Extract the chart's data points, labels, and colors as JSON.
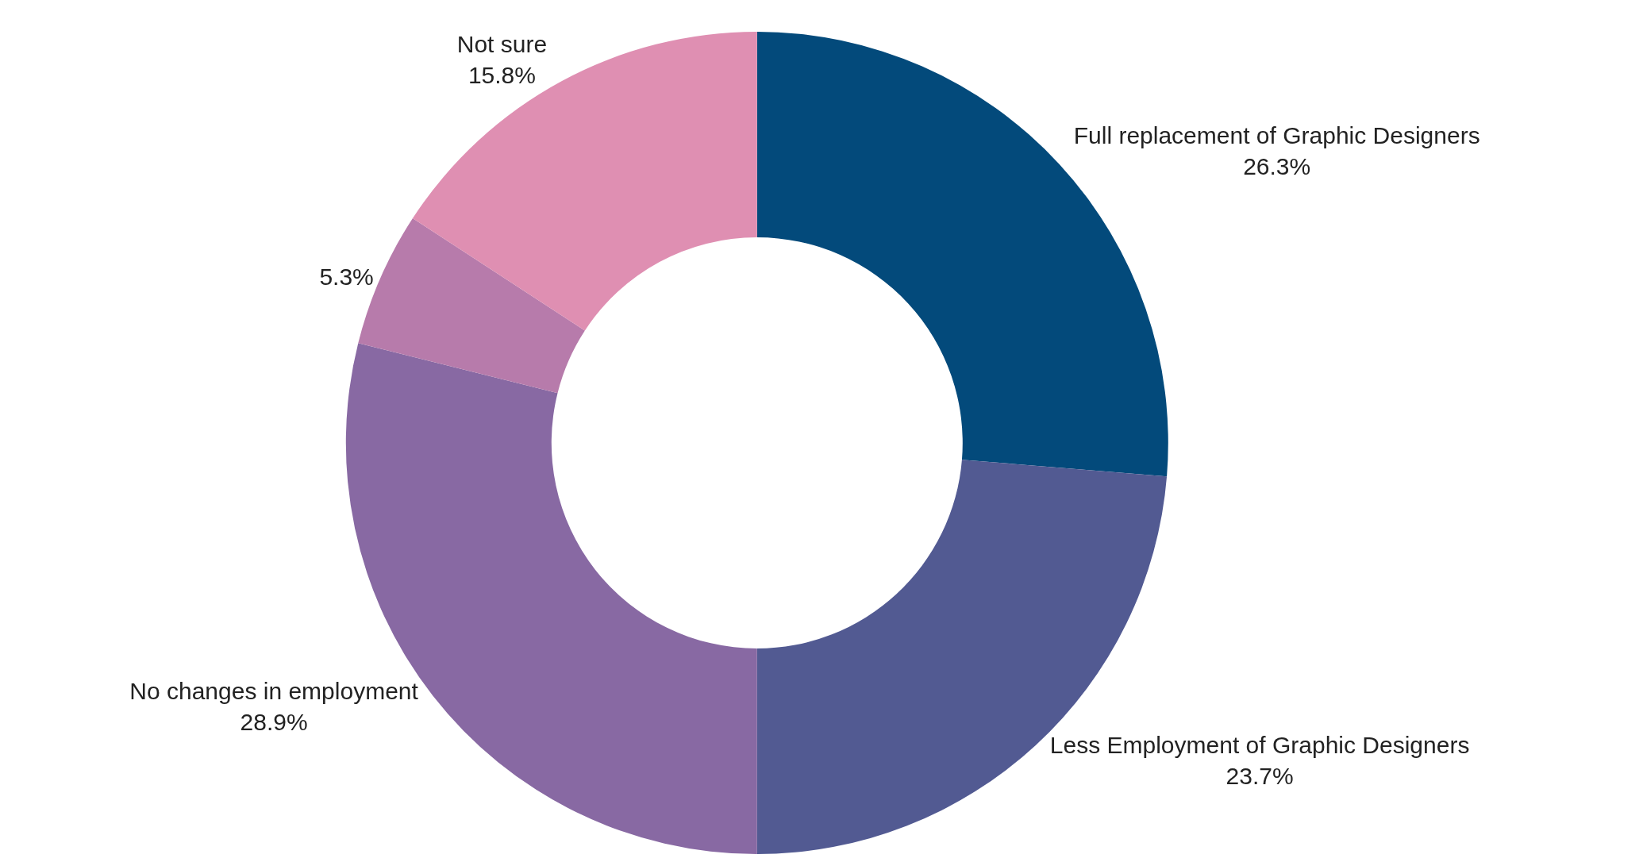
{
  "chart_data": {
    "type": "donut",
    "categories": [
      "Full replacement of Graphic Designers",
      "Less Employment of Graphic Designers",
      "No changes in employment",
      null,
      "Not sure"
    ],
    "values": [
      26.3,
      23.7,
      28.9,
      5.3,
      15.8
    ],
    "value_labels": [
      "26.3%",
      "23.7%",
      "28.9%",
      "5.3%",
      "15.8%"
    ],
    "colors": [
      "#034a7b",
      "#525a92",
      "#8869a3",
      "#b77bab",
      "#df8fb2"
    ]
  }
}
